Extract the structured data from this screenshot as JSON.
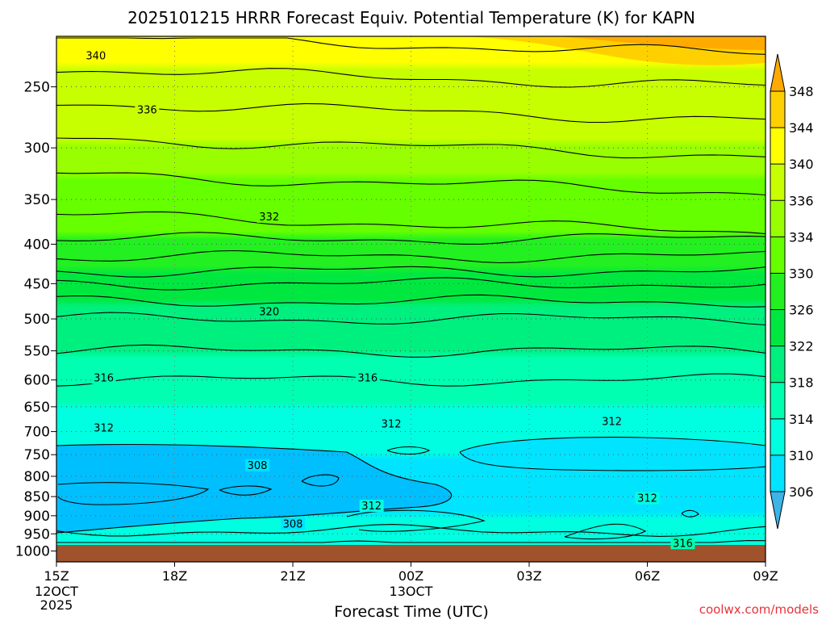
{
  "chart_data": {
    "type": "heatmap",
    "title": "2025101215 HRRR Forecast Equiv. Potential Temperature (K) for KAPN",
    "xlabel": "Forecast Time (UTC)",
    "ylabel": "",
    "credit": "coolwx.com/models",
    "x_ticks": [
      {
        "hour": 0,
        "label": "15Z",
        "sub1": "12OCT",
        "sub2": "2025"
      },
      {
        "hour": 3,
        "label": "18Z",
        "sub1": "",
        "sub2": ""
      },
      {
        "hour": 6,
        "label": "21Z",
        "sub1": "",
        "sub2": ""
      },
      {
        "hour": 9,
        "label": "00Z",
        "sub1": "13OCT",
        "sub2": ""
      },
      {
        "hour": 12,
        "label": "03Z",
        "sub1": "",
        "sub2": ""
      },
      {
        "hour": 15,
        "label": "06Z",
        "sub1": "",
        "sub2": ""
      },
      {
        "hour": 18,
        "label": "09Z",
        "sub1": "",
        "sub2": ""
      }
    ],
    "x_range": [
      0,
      18
    ],
    "y_axis": {
      "scale": "log",
      "range_hpa": [
        1033,
        215
      ],
      "reversed": true,
      "ticks": [
        250,
        300,
        350,
        400,
        450,
        500,
        550,
        600,
        650,
        700,
        750,
        800,
        850,
        900,
        950,
        1000
      ]
    },
    "colorbar": {
      "labels": [
        306,
        310,
        314,
        318,
        322,
        326,
        330,
        334,
        336,
        340,
        344,
        348
      ],
      "colors": [
        "#00bfff",
        "#00e4ff",
        "#00ffe0",
        "#00ffb0",
        "#00f080",
        "#00e840",
        "#22f020",
        "#66ff00",
        "#99ff00",
        "#c8ff00",
        "#ffff00",
        "#ffd000",
        "#ffaa00"
      ],
      "under_color": "#3cb4e6",
      "over_color": "#ffaa00"
    },
    "ground_color": "#a0522d",
    "ground_top_hpa": 1000,
    "profile_levels_hpa": [
      1000,
      975,
      950,
      925,
      900,
      875,
      850,
      825,
      800,
      775,
      750,
      725,
      700,
      650,
      600,
      550,
      500,
      450,
      425,
      400,
      375,
      350,
      325,
      300,
      275,
      250,
      225,
      215
    ],
    "profile_theta_e_k": [
      314.5,
      313.5,
      312.5,
      311,
      310,
      308.5,
      308,
      308,
      308.5,
      309,
      310,
      311,
      312,
      314,
      316,
      318,
      320,
      324,
      327,
      329.5,
      331.5,
      333,
      334,
      335.5,
      337,
      339,
      341,
      342
    ],
    "contour_labels": [
      {
        "hour": 1.0,
        "hpa": 228,
        "text": "340"
      },
      {
        "hour": 2.3,
        "hpa": 268,
        "text": "336"
      },
      {
        "hour": 5.4,
        "hpa": 369,
        "text": "332"
      },
      {
        "hour": 5.4,
        "hpa": 490,
        "text": "320"
      },
      {
        "hour": 1.2,
        "hpa": 597,
        "text": "316"
      },
      {
        "hour": 7.9,
        "hpa": 597,
        "text": "316"
      },
      {
        "hour": 1.2,
        "hpa": 693,
        "text": "312"
      },
      {
        "hour": 8.5,
        "hpa": 685,
        "text": "312"
      },
      {
        "hour": 14.1,
        "hpa": 680,
        "text": "312"
      },
      {
        "hour": 15.0,
        "hpa": 855,
        "text": "312"
      },
      {
        "hour": 8.0,
        "hpa": 875,
        "text": "312"
      },
      {
        "hour": 5.1,
        "hpa": 775,
        "text": "308"
      },
      {
        "hour": 6.0,
        "hpa": 923,
        "text": "308"
      },
      {
        "hour": 15.9,
        "hpa": 978,
        "text": "316"
      }
    ]
  }
}
